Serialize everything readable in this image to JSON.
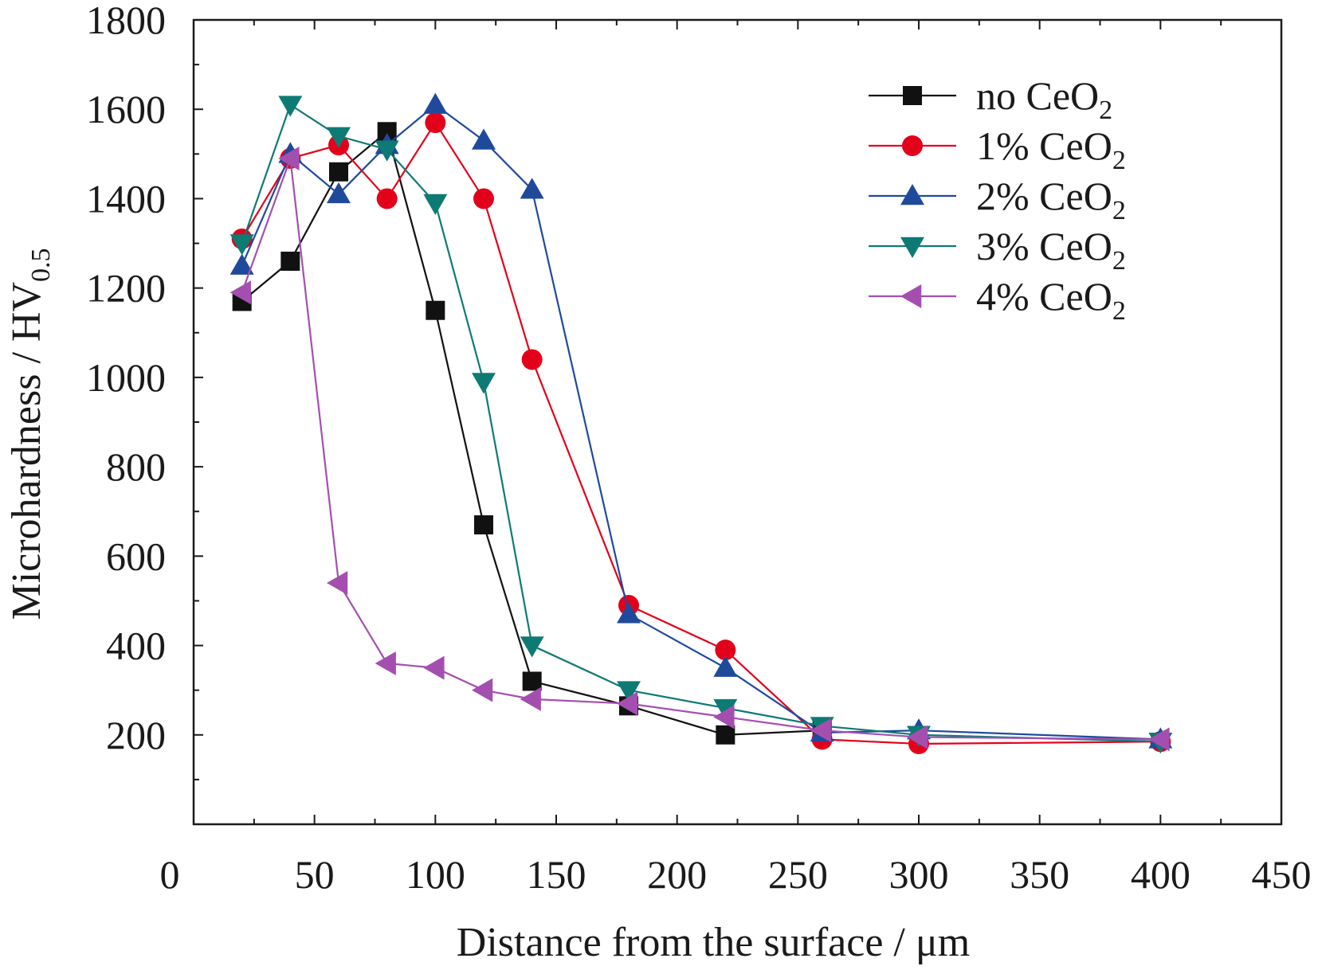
{
  "chart_data": {
    "type": "line",
    "xlabel": "Distance from the surface / μm",
    "ylabel": {
      "main": "Microhardness / HV",
      "sub": "0.5"
    },
    "xlim": [
      0,
      450
    ],
    "ylim": [
      0,
      1800
    ],
    "x_ticks": [
      0,
      50,
      100,
      150,
      200,
      250,
      300,
      350,
      400,
      450
    ],
    "x_tick_labels": [
      "0",
      "50",
      "100",
      "150",
      "200",
      "250",
      "300",
      "350",
      "400",
      "450"
    ],
    "y_ticks": [
      200,
      400,
      600,
      800,
      1000,
      1200,
      1400,
      1600,
      1800
    ],
    "y_tick_labels": [
      "200",
      "400",
      "600",
      "800",
      "1000",
      "1200",
      "1400",
      "1600",
      "1800"
    ],
    "grid": false,
    "legend_position": "top-right",
    "series": [
      {
        "label": {
          "main": "no CeO",
          "sub": "2"
        },
        "color": "#111111",
        "marker": "square",
        "x": [
          20,
          40,
          60,
          80,
          100,
          120,
          140,
          180,
          220,
          260
        ],
        "y": [
          1170,
          1260,
          1460,
          1550,
          1150,
          670,
          320,
          265,
          200,
          210
        ]
      },
      {
        "label": {
          "main": "1% CeO",
          "sub": "2"
        },
        "color": "#e3001b",
        "marker": "circle",
        "x": [
          20,
          40,
          60,
          80,
          100,
          120,
          140,
          180,
          220,
          260,
          300,
          400
        ],
        "y": [
          1310,
          1490,
          1520,
          1400,
          1570,
          1400,
          1040,
          490,
          390,
          190,
          180,
          185
        ]
      },
      {
        "label": {
          "main": "2% CeO",
          "sub": "2"
        },
        "color": "#1f4a9c",
        "marker": "triangle-up",
        "x": [
          20,
          40,
          60,
          80,
          100,
          120,
          140,
          180,
          220,
          260,
          300,
          400
        ],
        "y": [
          1250,
          1500,
          1410,
          1520,
          1610,
          1530,
          1420,
          470,
          350,
          205,
          210,
          190
        ]
      },
      {
        "label": {
          "main": "3% CeO",
          "sub": "2"
        },
        "color": "#0e7a74",
        "marker": "triangle-down",
        "x": [
          20,
          40,
          60,
          80,
          100,
          120,
          140,
          180,
          220,
          260,
          300,
          400
        ],
        "y": [
          1300,
          1610,
          1540,
          1510,
          1390,
          990,
          400,
          300,
          260,
          220,
          200,
          185
        ]
      },
      {
        "label": {
          "main": "4% CeO",
          "sub": "2"
        },
        "color": "#a44fb0",
        "marker": "triangle-left",
        "x": [
          20,
          40,
          60,
          80,
          100,
          120,
          140,
          180,
          220,
          260,
          300,
          400
        ],
        "y": [
          1190,
          1490,
          540,
          360,
          350,
          300,
          280,
          270,
          240,
          210,
          195,
          190
        ]
      }
    ]
  }
}
